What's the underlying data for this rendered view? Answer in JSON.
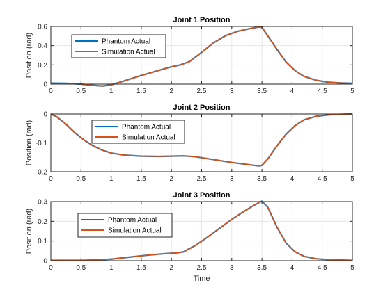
{
  "figure": {
    "xlabel": "Time"
  },
  "chart_data": [
    {
      "type": "line",
      "title": "Joint 1 Position",
      "xlabel": "",
      "ylabel": "Position (rad)",
      "xlim": [
        0,
        5
      ],
      "ylim": [
        0,
        0.6
      ],
      "yticks": [
        0,
        0.2,
        0.4,
        0.6
      ],
      "yticklabels": [
        "0",
        "0.2",
        "0.4",
        "0.6"
      ],
      "xticks": [
        0,
        0.5,
        1,
        1.5,
        2,
        2.5,
        3,
        3.5,
        4,
        4.5,
        5
      ],
      "xticklabels": [
        "0",
        "0.5",
        "1",
        "1.5",
        "2",
        "2.5",
        "3",
        "3.5",
        "4",
        "4.5",
        "5"
      ],
      "grid": true,
      "legend": "upper-left",
      "x": [
        0,
        0.25,
        0.5,
        0.7,
        0.85,
        1.0,
        1.2,
        1.5,
        1.8,
        2.0,
        2.15,
        2.3,
        2.5,
        2.7,
        2.9,
        3.1,
        3.3,
        3.45,
        3.5,
        3.6,
        3.75,
        3.9,
        4.05,
        4.2,
        4.4,
        4.6,
        4.8,
        5.0
      ],
      "series": [
        {
          "name": "Phantom Actual",
          "color": "#0072BD",
          "values": [
            0.01,
            0.008,
            0.0,
            -0.012,
            -0.02,
            -0.008,
            0.03,
            0.09,
            0.145,
            0.18,
            0.2,
            0.235,
            0.33,
            0.43,
            0.505,
            0.55,
            0.578,
            0.595,
            0.59,
            0.5,
            0.36,
            0.23,
            0.14,
            0.08,
            0.04,
            0.02,
            0.012,
            0.008
          ]
        },
        {
          "name": "Simulation Actual",
          "color": "#D95319",
          "values": [
            0.01,
            0.008,
            0.0,
            -0.012,
            -0.02,
            -0.008,
            0.03,
            0.09,
            0.145,
            0.18,
            0.2,
            0.235,
            0.33,
            0.43,
            0.505,
            0.55,
            0.578,
            0.595,
            0.59,
            0.5,
            0.36,
            0.23,
            0.14,
            0.08,
            0.04,
            0.02,
            0.012,
            0.008
          ]
        }
      ]
    },
    {
      "type": "line",
      "title": "Joint 2 Position",
      "xlabel": "",
      "ylabel": "Position (rad)",
      "xlim": [
        0,
        5
      ],
      "ylim": [
        -0.2,
        0
      ],
      "yticks": [
        -0.2,
        -0.1,
        0
      ],
      "yticklabels": [
        "-0.2",
        "-0.1",
        "0"
      ],
      "xticks": [
        0,
        0.5,
        1,
        1.5,
        2,
        2.5,
        3,
        3.5,
        4,
        4.5,
        5
      ],
      "xticklabels": [
        "0",
        "0.5",
        "1",
        "1.5",
        "2",
        "2.5",
        "3",
        "3.5",
        "4",
        "4.5",
        "5"
      ],
      "grid": true,
      "legend": "upper-left",
      "x": [
        0,
        0.1,
        0.25,
        0.4,
        0.55,
        0.7,
        0.85,
        1.0,
        1.2,
        1.5,
        1.8,
        2.0,
        2.2,
        2.4,
        2.7,
        3.0,
        3.3,
        3.45,
        3.5,
        3.6,
        3.75,
        3.9,
        4.05,
        4.2,
        4.4,
        4.6,
        4.8,
        5.0
      ],
      "series": [
        {
          "name": "Phantom Actual",
          "color": "#0072BD",
          "values": [
            0.0,
            -0.01,
            -0.035,
            -0.065,
            -0.09,
            -0.11,
            -0.125,
            -0.135,
            -0.142,
            -0.146,
            -0.147,
            -0.146,
            -0.145,
            -0.148,
            -0.158,
            -0.168,
            -0.176,
            -0.18,
            -0.178,
            -0.155,
            -0.11,
            -0.07,
            -0.04,
            -0.02,
            -0.008,
            -0.003,
            -0.001,
            0.0
          ]
        },
        {
          "name": "Simulation Actual",
          "color": "#D95319",
          "values": [
            0.0,
            -0.01,
            -0.035,
            -0.065,
            -0.09,
            -0.11,
            -0.125,
            -0.135,
            -0.142,
            -0.146,
            -0.147,
            -0.146,
            -0.145,
            -0.148,
            -0.158,
            -0.168,
            -0.176,
            -0.18,
            -0.178,
            -0.155,
            -0.11,
            -0.07,
            -0.04,
            -0.02,
            -0.008,
            -0.003,
            -0.001,
            0.0
          ]
        }
      ]
    },
    {
      "type": "line",
      "title": "Joint 3 Position",
      "xlabel": "Time",
      "ylabel": "Position (rad)",
      "xlim": [
        0,
        5
      ],
      "ylim": [
        0,
        0.3
      ],
      "yticks": [
        0,
        0.1,
        0.2,
        0.3
      ],
      "yticklabels": [
        "0",
        "0.1",
        "0.2",
        "0.3"
      ],
      "xticks": [
        0,
        0.5,
        1,
        1.5,
        2,
        2.5,
        3,
        3.5,
        4,
        4.5,
        5
      ],
      "xticklabels": [
        "0",
        "0.5",
        "1",
        "1.5",
        "2",
        "2.5",
        "3",
        "3.5",
        "4",
        "4.5",
        "5"
      ],
      "grid": true,
      "legend": "upper-left",
      "x": [
        0,
        0.5,
        0.8,
        1.0,
        1.3,
        1.6,
        1.9,
        2.1,
        2.2,
        2.4,
        2.6,
        2.8,
        3.0,
        3.2,
        3.35,
        3.45,
        3.5,
        3.6,
        3.75,
        3.9,
        4.05,
        4.2,
        4.4,
        4.6,
        4.8,
        5.0
      ],
      "series": [
        {
          "name": "Phantom Actual",
          "color": "#0072BD",
          "values": [
            0.002,
            0.002,
            0.004,
            0.008,
            0.018,
            0.028,
            0.036,
            0.04,
            0.045,
            0.078,
            0.12,
            0.165,
            0.21,
            0.25,
            0.278,
            0.295,
            0.302,
            0.27,
            0.17,
            0.09,
            0.045,
            0.022,
            0.01,
            0.005,
            0.003,
            0.002
          ]
        },
        {
          "name": "Simulation Actual",
          "color": "#D95319",
          "values": [
            0.002,
            0.002,
            0.004,
            0.008,
            0.018,
            0.028,
            0.036,
            0.04,
            0.045,
            0.078,
            0.12,
            0.165,
            0.21,
            0.25,
            0.278,
            0.295,
            0.302,
            0.27,
            0.17,
            0.09,
            0.045,
            0.022,
            0.01,
            0.005,
            0.003,
            0.002
          ]
        }
      ]
    }
  ]
}
